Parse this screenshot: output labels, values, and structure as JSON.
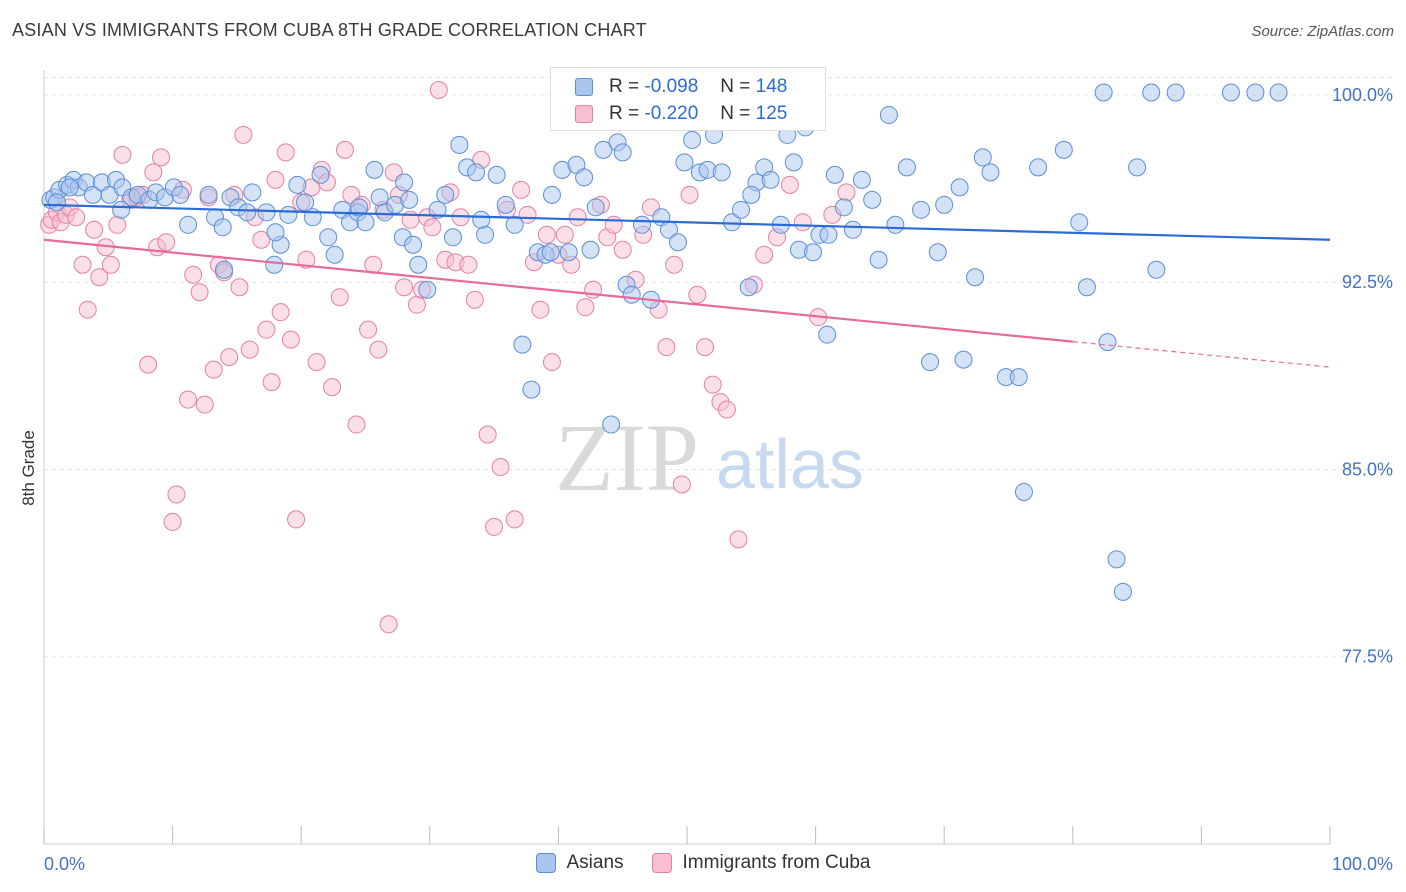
{
  "title": "ASIAN VS IMMIGRANTS FROM CUBA 8TH GRADE CORRELATION CHART",
  "source": "Source: ZipAtlas.com",
  "watermark": {
    "zip": "ZIP",
    "atlas": "atlas"
  },
  "legend": {
    "rows": [
      {
        "r_label": "R =",
        "r_value": "-0.098",
        "n_label": "N =",
        "n_value": "148",
        "color": "#a9c6ee",
        "stroke": "#5b8ed8"
      },
      {
        "r_label": "R =",
        "r_value": "-0.220",
        "n_label": "N =",
        "n_value": "125",
        "color": "#f7bfd1",
        "stroke": "#e67fa3"
      }
    ]
  },
  "bottom_legend": [
    {
      "label": "Asians",
      "color": "#a9c6ee",
      "stroke": "#5b8ed8"
    },
    {
      "label": "Immigrants from Cuba",
      "color": "#f7bfd1",
      "stroke": "#e67fa3"
    }
  ],
  "chart_data": {
    "type": "scatter",
    "title": "ASIAN VS IMMIGRANTS FROM CUBA 8TH GRADE CORRELATION CHART",
    "xlabel": "",
    "ylabel": "8th Grade",
    "xlim": [
      0,
      100
    ],
    "ylim": [
      70.0,
      101.0
    ],
    "x_tick_labels": [
      "0.0%",
      "100.0%"
    ],
    "y_ticks": [
      100.0,
      92.5,
      85.0,
      77.5
    ],
    "y_tick_labels": [
      "100.0%",
      "92.5%",
      "85.0%",
      "77.5%"
    ],
    "grid": true,
    "legend_position": "top-center",
    "series": [
      {
        "name": "Asians",
        "color": "#a9c6ee",
        "edge": "#5b8ed8",
        "trend": {
          "x": [
            0,
            100
          ],
          "y": [
            95.6,
            94.2
          ],
          "color": "#2b6bd6"
        },
        "points": [
          [
            0.5,
            95.8
          ],
          [
            0.8,
            95.9
          ],
          [
            1.2,
            96.2
          ],
          [
            1.8,
            96.4
          ],
          [
            2.3,
            96.6
          ],
          [
            2.7,
            96.3
          ],
          [
            3.3,
            96.5
          ],
          [
            3.8,
            96.0
          ],
          [
            4.5,
            96.5
          ],
          [
            5.1,
            96.0
          ],
          [
            5.6,
            96.6
          ],
          [
            6.1,
            96.3
          ],
          [
            6.8,
            95.9
          ],
          [
            7.3,
            96.0
          ],
          [
            8.2,
            95.8
          ],
          [
            8.7,
            96.1
          ],
          [
            9.4,
            95.9
          ],
          [
            10.1,
            96.3
          ],
          [
            10.6,
            96.0
          ],
          [
            11.2,
            94.8
          ],
          [
            12.8,
            96.0
          ],
          [
            13.3,
            95.1
          ],
          [
            13.9,
            94.7
          ],
          [
            14.5,
            95.9
          ],
          [
            15.1,
            95.5
          ],
          [
            15.8,
            95.3
          ],
          [
            16.2,
            96.1
          ],
          [
            17.3,
            95.3
          ],
          [
            17.9,
            93.2
          ],
          [
            18.4,
            94.0
          ],
          [
            19.0,
            95.2
          ],
          [
            19.7,
            96.4
          ],
          [
            20.3,
            95.7
          ],
          [
            20.9,
            95.1
          ],
          [
            21.5,
            96.8
          ],
          [
            22.1,
            94.3
          ],
          [
            22.6,
            93.6
          ],
          [
            23.2,
            95.4
          ],
          [
            23.8,
            94.9
          ],
          [
            24.4,
            95.3
          ],
          [
            25.0,
            94.9
          ],
          [
            25.7,
            97.0
          ],
          [
            26.1,
            95.9
          ],
          [
            26.5,
            95.3
          ],
          [
            27.3,
            95.6
          ],
          [
            27.9,
            94.3
          ],
          [
            28.4,
            95.8
          ],
          [
            28.7,
            94.0
          ],
          [
            29.1,
            93.2
          ],
          [
            29.8,
            92.2
          ],
          [
            30.6,
            95.4
          ],
          [
            31.2,
            96.0
          ],
          [
            31.8,
            94.3
          ],
          [
            32.3,
            98.0
          ],
          [
            32.9,
            97.1
          ],
          [
            33.6,
            96.9
          ],
          [
            34.3,
            94.4
          ],
          [
            35.2,
            96.8
          ],
          [
            35.9,
            95.6
          ],
          [
            36.6,
            94.8
          ],
          [
            37.2,
            90.0
          ],
          [
            37.9,
            88.2
          ],
          [
            38.4,
            93.7
          ],
          [
            39.0,
            93.6
          ],
          [
            39.4,
            93.7
          ],
          [
            40.3,
            97.0
          ],
          [
            40.8,
            93.7
          ],
          [
            41.4,
            97.2
          ],
          [
            42.0,
            96.7
          ],
          [
            42.5,
            93.8
          ],
          [
            42.9,
            95.5
          ],
          [
            43.5,
            97.8
          ],
          [
            44.1,
            86.8
          ],
          [
            44.6,
            98.1
          ],
          [
            45.3,
            92.4
          ],
          [
            45.7,
            92.0
          ],
          [
            46.5,
            94.8
          ],
          [
            47.2,
            91.8
          ],
          [
            48.0,
            95.1
          ],
          [
            48.6,
            94.6
          ],
          [
            49.3,
            94.1
          ],
          [
            49.8,
            97.3
          ],
          [
            50.4,
            98.2
          ],
          [
            51.0,
            96.9
          ],
          [
            51.6,
            97.0
          ],
          [
            52.1,
            98.4
          ],
          [
            52.7,
            96.9
          ],
          [
            53.5,
            94.9
          ],
          [
            54.2,
            95.4
          ],
          [
            54.8,
            92.3
          ],
          [
            55.4,
            96.5
          ],
          [
            56.0,
            97.1
          ],
          [
            56.5,
            96.6
          ],
          [
            57.3,
            94.8
          ],
          [
            57.8,
            98.4
          ],
          [
            58.3,
            97.3
          ],
          [
            58.7,
            93.8
          ],
          [
            59.2,
            98.7
          ],
          [
            59.8,
            93.7
          ],
          [
            60.3,
            94.4
          ],
          [
            60.9,
            90.4
          ],
          [
            61.5,
            96.8
          ],
          [
            62.2,
            95.5
          ],
          [
            62.9,
            94.6
          ],
          [
            63.6,
            96.6
          ],
          [
            64.4,
            95.8
          ],
          [
            64.9,
            93.4
          ],
          [
            65.7,
            99.2
          ],
          [
            66.2,
            94.8
          ],
          [
            67.1,
            97.1
          ],
          [
            68.2,
            95.4
          ],
          [
            68.9,
            89.3
          ],
          [
            69.5,
            93.7
          ],
          [
            70.0,
            95.6
          ],
          [
            71.2,
            96.3
          ],
          [
            71.5,
            89.4
          ],
          [
            72.4,
            92.7
          ],
          [
            73.0,
            97.5
          ],
          [
            73.6,
            96.9
          ],
          [
            74.8,
            88.7
          ],
          [
            75.8,
            88.7
          ],
          [
            76.2,
            84.1
          ],
          [
            77.3,
            97.1
          ],
          [
            79.3,
            97.8
          ],
          [
            80.5,
            94.9
          ],
          [
            81.1,
            92.3
          ],
          [
            82.4,
            100.1
          ],
          [
            82.7,
            90.1
          ],
          [
            83.4,
            81.4
          ],
          [
            83.9,
            80.1
          ],
          [
            85.0,
            97.1
          ],
          [
            86.1,
            100.1
          ],
          [
            86.5,
            93.0
          ],
          [
            88.0,
            100.1
          ],
          [
            92.3,
            100.1
          ],
          [
            94.2,
            100.1
          ],
          [
            96.0,
            100.1
          ],
          [
            61.0,
            94.4
          ],
          [
            55.0,
            96.0
          ],
          [
            45.0,
            97.7
          ],
          [
            39.5,
            96.0
          ],
          [
            34.0,
            95.0
          ],
          [
            28.0,
            96.5
          ],
          [
            24.5,
            95.5
          ],
          [
            18.0,
            94.5
          ],
          [
            14.0,
            93.0
          ],
          [
            6.0,
            95.4
          ],
          [
            2.0,
            96.3
          ],
          [
            1.0,
            95.7
          ]
        ]
      },
      {
        "name": "Immigrants from Cuba",
        "color": "#f7bfd1",
        "edge": "#e67fa3",
        "trend": {
          "x": [
            0,
            100
          ],
          "y": [
            94.2,
            89.1
          ],
          "color": "#e8699b",
          "solid_until": 80
        },
        "points": [
          [
            0.4,
            94.8
          ],
          [
            0.6,
            95.0
          ],
          [
            1.0,
            95.3
          ],
          [
            1.3,
            94.9
          ],
          [
            1.7,
            95.2
          ],
          [
            2.0,
            95.5
          ],
          [
            2.5,
            95.1
          ],
          [
            3.0,
            93.2
          ],
          [
            3.4,
            91.4
          ],
          [
            3.9,
            94.6
          ],
          [
            4.3,
            92.7
          ],
          [
            4.8,
            93.9
          ],
          [
            5.2,
            93.2
          ],
          [
            5.7,
            94.8
          ],
          [
            6.1,
            97.6
          ],
          [
            6.7,
            95.8
          ],
          [
            7.2,
            95.9
          ],
          [
            7.7,
            96.0
          ],
          [
            8.1,
            89.2
          ],
          [
            8.5,
            96.9
          ],
          [
            8.8,
            93.9
          ],
          [
            9.1,
            97.5
          ],
          [
            9.5,
            94.1
          ],
          [
            10.0,
            82.9
          ],
          [
            10.3,
            84.0
          ],
          [
            10.8,
            96.2
          ],
          [
            11.2,
            87.8
          ],
          [
            11.6,
            92.8
          ],
          [
            12.1,
            92.1
          ],
          [
            12.5,
            87.6
          ],
          [
            12.8,
            95.9
          ],
          [
            13.2,
            89.0
          ],
          [
            13.6,
            93.2
          ],
          [
            14.0,
            92.9
          ],
          [
            14.4,
            89.5
          ],
          [
            14.8,
            96.0
          ],
          [
            15.2,
            92.3
          ],
          [
            15.5,
            98.4
          ],
          [
            16.0,
            89.8
          ],
          [
            16.4,
            95.1
          ],
          [
            16.9,
            94.2
          ],
          [
            17.3,
            90.6
          ],
          [
            17.7,
            88.5
          ],
          [
            18.0,
            96.6
          ],
          [
            18.4,
            91.3
          ],
          [
            18.8,
            97.7
          ],
          [
            19.2,
            90.2
          ],
          [
            19.6,
            83.0
          ],
          [
            20.0,
            95.7
          ],
          [
            20.4,
            93.4
          ],
          [
            20.8,
            96.3
          ],
          [
            21.2,
            89.3
          ],
          [
            21.6,
            97.0
          ],
          [
            22.0,
            96.5
          ],
          [
            22.4,
            88.3
          ],
          [
            23.0,
            91.9
          ],
          [
            23.4,
            97.8
          ],
          [
            23.9,
            96.0
          ],
          [
            24.3,
            86.8
          ],
          [
            24.7,
            95.6
          ],
          [
            25.2,
            90.6
          ],
          [
            25.6,
            93.2
          ],
          [
            26.0,
            89.8
          ],
          [
            26.4,
            95.4
          ],
          [
            26.8,
            78.8
          ],
          [
            27.2,
            96.9
          ],
          [
            27.6,
            96.0
          ],
          [
            28.0,
            92.3
          ],
          [
            28.5,
            95.0
          ],
          [
            29.0,
            91.6
          ],
          [
            29.4,
            92.2
          ],
          [
            29.8,
            95.1
          ],
          [
            30.2,
            94.7
          ],
          [
            30.7,
            100.2
          ],
          [
            31.2,
            93.4
          ],
          [
            31.6,
            96.1
          ],
          [
            32.0,
            93.3
          ],
          [
            32.4,
            95.1
          ],
          [
            33.0,
            93.2
          ],
          [
            33.5,
            91.8
          ],
          [
            34.0,
            97.4
          ],
          [
            34.5,
            86.4
          ],
          [
            35.0,
            82.7
          ],
          [
            35.5,
            85.1
          ],
          [
            36.0,
            95.4
          ],
          [
            36.6,
            83.0
          ],
          [
            37.1,
            96.2
          ],
          [
            37.6,
            95.2
          ],
          [
            38.1,
            93.3
          ],
          [
            38.6,
            91.4
          ],
          [
            39.1,
            94.4
          ],
          [
            39.5,
            89.3
          ],
          [
            40.0,
            93.6
          ],
          [
            40.5,
            94.4
          ],
          [
            41.0,
            93.2
          ],
          [
            41.5,
            95.1
          ],
          [
            42.1,
            91.5
          ],
          [
            42.7,
            92.2
          ],
          [
            43.3,
            95.6
          ],
          [
            43.8,
            94.3
          ],
          [
            44.3,
            94.8
          ],
          [
            45.0,
            93.8
          ],
          [
            46.0,
            92.6
          ],
          [
            46.6,
            94.4
          ],
          [
            47.2,
            95.5
          ],
          [
            47.8,
            91.4
          ],
          [
            48.4,
            89.9
          ],
          [
            49.0,
            93.2
          ],
          [
            49.6,
            84.4
          ],
          [
            50.2,
            96.0
          ],
          [
            50.8,
            92.0
          ],
          [
            51.4,
            89.9
          ],
          [
            52.0,
            88.4
          ],
          [
            52.6,
            87.7
          ],
          [
            53.1,
            87.4
          ],
          [
            54.0,
            82.2
          ],
          [
            55.2,
            92.4
          ],
          [
            56.0,
            93.6
          ],
          [
            57.0,
            94.3
          ],
          [
            58.0,
            96.4
          ],
          [
            59.0,
            94.9
          ],
          [
            60.2,
            91.1
          ],
          [
            61.3,
            95.2
          ],
          [
            62.4,
            96.1
          ]
        ]
      }
    ]
  }
}
